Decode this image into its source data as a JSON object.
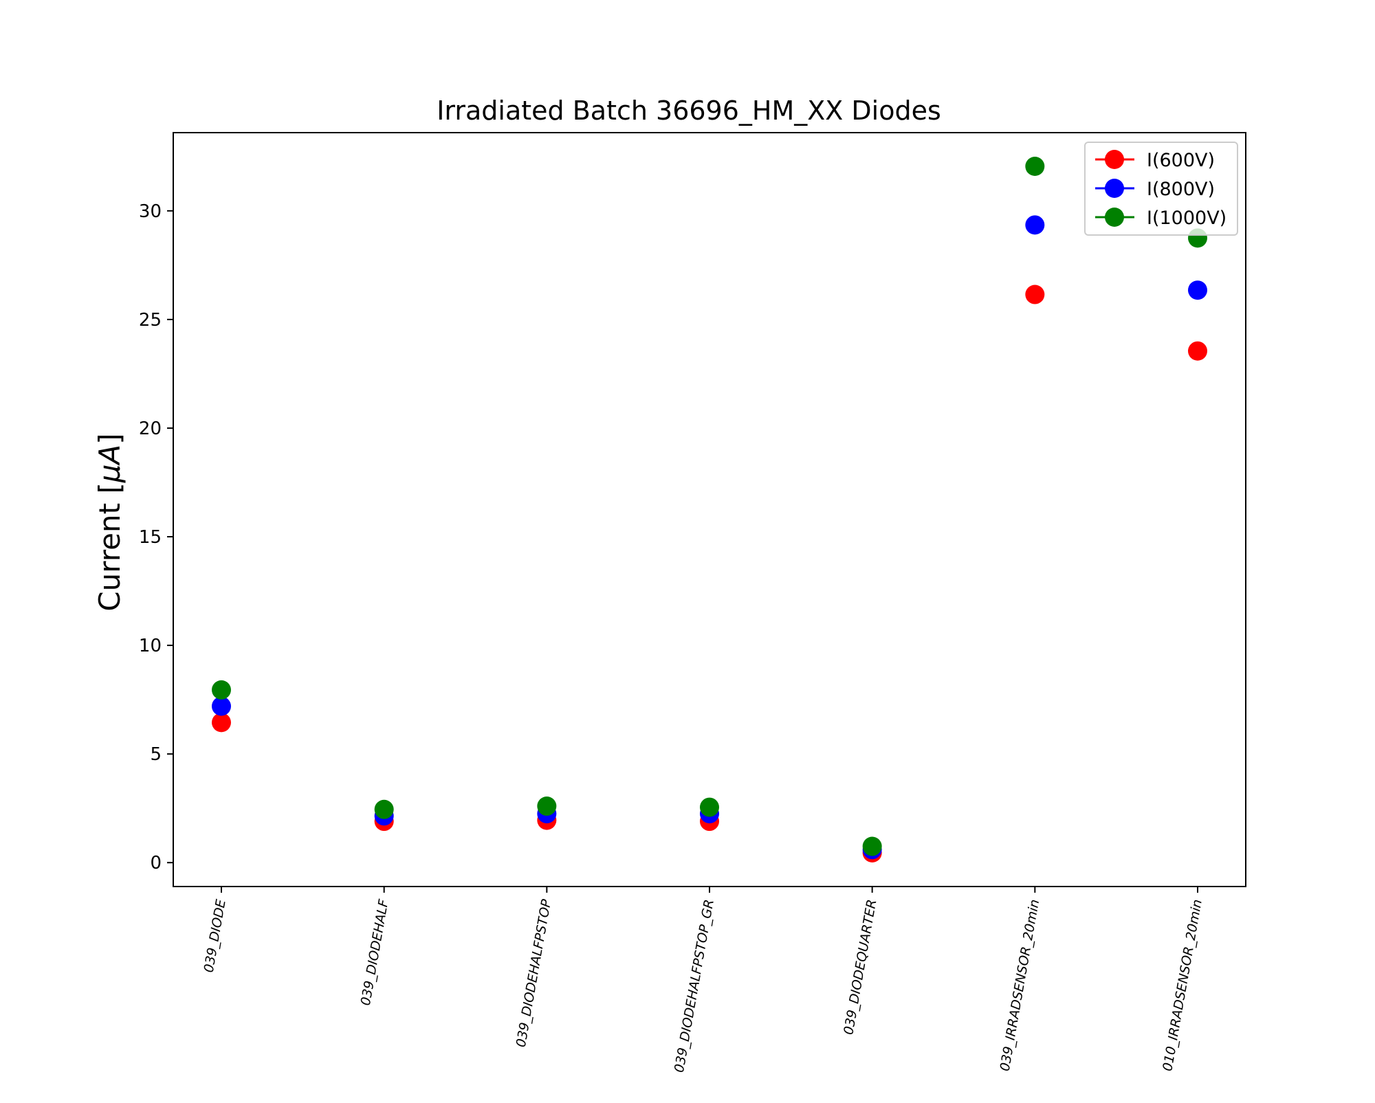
{
  "chart_data": {
    "type": "scatter",
    "title": "Irradiated Batch 36696_HM_XX Diodes",
    "xlabel": "",
    "ylabel_prefix": "Current [",
    "ylabel_symbol": "μA",
    "ylabel_suffix": "]",
    "categories": [
      "039_DIODE",
      "039_DIODEHALF",
      "039_DIODEHALFPSTOP",
      "039_DIODEHALFPSTOP_GR",
      "039_DIODEQUARTER",
      "039_IRRADSENSOR_20min",
      "010_IRRADSENSOR_20min"
    ],
    "series": [
      {
        "name": "I(600V)",
        "color": "#ff0000",
        "values": [
          6.45,
          1.9,
          1.95,
          1.9,
          0.45,
          26.15,
          23.55
        ]
      },
      {
        "name": "I(800V)",
        "color": "#0000ff",
        "values": [
          7.2,
          2.15,
          2.25,
          2.25,
          0.6,
          29.35,
          26.35
        ]
      },
      {
        "name": "I(1000V)",
        "color": "#008000",
        "values": [
          7.95,
          2.45,
          2.6,
          2.55,
          0.75,
          32.05,
          28.75
        ]
      }
    ],
    "yticks": [
      0,
      5,
      10,
      15,
      20,
      25,
      30
    ],
    "ylim": [
      -1.1,
      33.6
    ],
    "grid": false,
    "legend_position": "top-right"
  }
}
